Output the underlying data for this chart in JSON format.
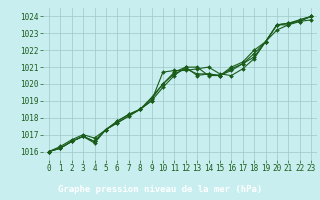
{
  "title": "Graphe pression niveau de la mer (hPa)",
  "bg_color": "#c8eef0",
  "plot_bg_color": "#c8eef0",
  "line_color": "#1a5c1a",
  "grid_color": "#a0c8c8",
  "ylim": [
    1015.5,
    1024.5
  ],
  "xlim": [
    -0.5,
    23.5
  ],
  "yticks": [
    1016,
    1017,
    1018,
    1019,
    1020,
    1021,
    1022,
    1023,
    1024
  ],
  "xticks": [
    0,
    1,
    2,
    3,
    4,
    5,
    6,
    7,
    8,
    9,
    10,
    11,
    12,
    13,
    14,
    15,
    16,
    17,
    18,
    19,
    20,
    21,
    22,
    23
  ],
  "series": [
    [
      1016.0,
      1016.2,
      1016.6,
      1016.9,
      1016.5,
      1017.3,
      1017.8,
      1018.2,
      1018.5,
      1019.0,
      1020.7,
      1020.8,
      1020.8,
      1020.9,
      1021.0,
      1020.6,
      1020.5,
      1020.9,
      1021.5,
      1022.5,
      1023.5,
      1023.6,
      1023.7,
      1023.8
    ],
    [
      1016.0,
      1016.3,
      1016.7,
      1017.0,
      1016.8,
      1017.3,
      1017.8,
      1018.2,
      1018.5,
      1019.0,
      1019.8,
      1020.5,
      1021.0,
      1021.0,
      1020.5,
      1020.5,
      1020.8,
      1021.2,
      1021.8,
      1022.5,
      1023.5,
      1023.5,
      1023.8,
      1024.0
    ],
    [
      1016.0,
      1016.2,
      1016.6,
      1016.9,
      1016.6,
      1017.3,
      1017.7,
      1018.1,
      1018.5,
      1019.2,
      1020.0,
      1020.7,
      1021.0,
      1020.5,
      1020.6,
      1020.5,
      1021.0,
      1021.3,
      1022.0,
      1022.5,
      1023.5,
      1023.6,
      1023.8,
      1024.0
    ],
    [
      1016.0,
      1016.2,
      1016.6,
      1016.9,
      1016.6,
      1017.3,
      1017.7,
      1018.1,
      1018.5,
      1019.1,
      1020.0,
      1020.6,
      1020.9,
      1020.6,
      1020.6,
      1020.5,
      1020.9,
      1021.2,
      1021.6,
      1022.5,
      1023.2,
      1023.5,
      1023.7,
      1024.0
    ]
  ],
  "label_bg": "#2e7d2e",
  "label_text_color": "#ffffff",
  "label_fontsize": 6.5,
  "tick_fontsize": 5.5
}
